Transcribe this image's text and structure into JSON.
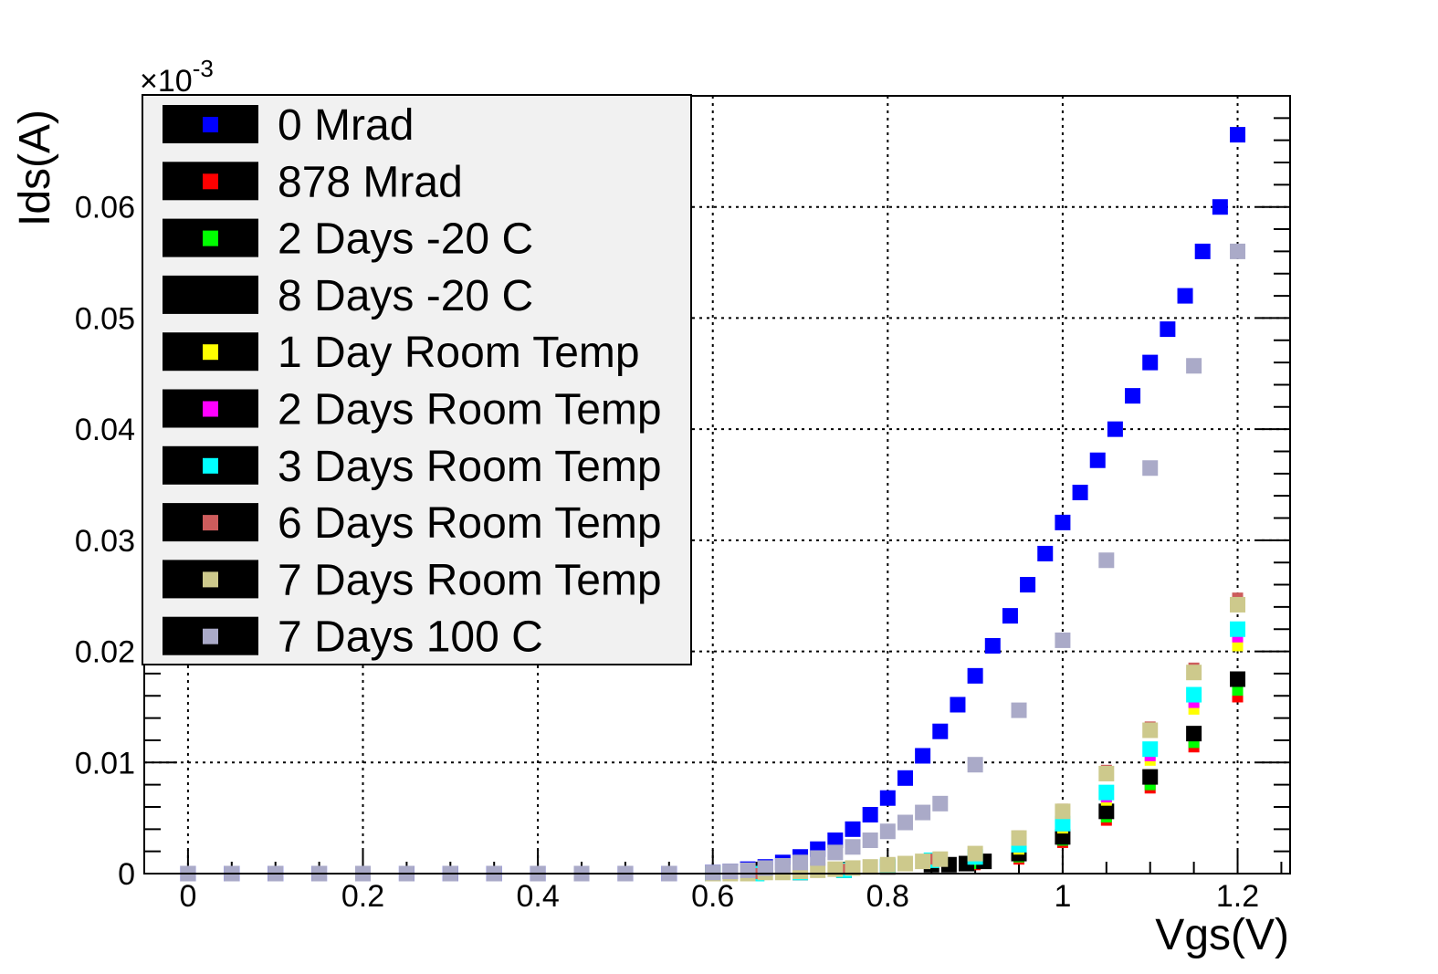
{
  "chart_data": {
    "type": "scatter",
    "xlabel": "Vgs(V)",
    "ylabel": "Ids(A)",
    "y_multiplier_label": "×10",
    "y_multiplier_exponent": "-3",
    "xlim": [
      -0.05,
      1.26
    ],
    "ylim": [
      0,
      0.07
    ],
    "x_ticks": [
      {
        "v": 0,
        "label": "0"
      },
      {
        "v": 0.2,
        "label": "0.2"
      },
      {
        "v": 0.4,
        "label": "0.4"
      },
      {
        "v": 0.6,
        "label": "0.6"
      },
      {
        "v": 0.8,
        "label": "0.8"
      },
      {
        "v": 1.0,
        "label": "1"
      },
      {
        "v": 1.2,
        "label": "1.2"
      }
    ],
    "y_ticks": [
      {
        "v": 0,
        "label": "0"
      },
      {
        "v": 0.01,
        "label": "0.01"
      },
      {
        "v": 0.02,
        "label": "0.02"
      },
      {
        "v": 0.03,
        "label": "0.03"
      },
      {
        "v": 0.04,
        "label": "0.04"
      },
      {
        "v": 0.05,
        "label": "0.05"
      },
      {
        "v": 0.06,
        "label": "0.06"
      }
    ],
    "grid": true,
    "legend_position": "top-left",
    "series": [
      {
        "name": "0 Mrad",
        "color": "#0000ff",
        "marker_size": 17,
        "x": [
          0,
          0.05,
          0.1,
          0.15,
          0.2,
          0.25,
          0.3,
          0.35,
          0.4,
          0.45,
          0.5,
          0.55,
          0.6,
          0.62,
          0.64,
          0.66,
          0.68,
          0.7,
          0.72,
          0.74,
          0.76,
          0.78,
          0.8,
          0.82,
          0.84,
          0.86,
          0.88,
          0.9,
          0.92,
          0.94,
          0.96,
          0.98,
          1.0,
          1.02,
          1.04,
          1.06,
          1.08,
          1.1,
          1.12,
          1.14,
          1.16,
          1.18,
          1.2
        ],
        "y": [
          0,
          0,
          0,
          0,
          0,
          0,
          0,
          0,
          0,
          0,
          0,
          0,
          0.0001,
          0.0002,
          0.0004,
          0.0006,
          0.001,
          0.0015,
          0.0022,
          0.003,
          0.004,
          0.0053,
          0.0068,
          0.0086,
          0.0106,
          0.0128,
          0.0152,
          0.0178,
          0.0205,
          0.0232,
          0.026,
          0.0288,
          0.0316,
          0.0343,
          0.0372,
          0.04,
          0.043,
          0.046,
          0.049,
          0.052,
          0.056,
          0.06,
          0.0665
        ]
      },
      {
        "name": "878 Mrad",
        "color": "#ff0000",
        "marker_size": 12,
        "x": [
          0.6,
          0.65,
          0.7,
          0.75,
          0.8,
          0.85,
          0.9,
          0.95,
          1.0,
          1.05,
          1.1,
          1.15,
          1.2
        ],
        "y": [
          0,
          0,
          0.0001,
          0.0003,
          0.0006,
          0.0009,
          0.0008,
          0.0013,
          0.0028,
          0.0048,
          0.0077,
          0.0114,
          0.0159
        ]
      },
      {
        "name": "2 Days -20 C",
        "color": "#00ff00",
        "marker_size": 12,
        "x": [
          0.6,
          0.65,
          0.7,
          0.75,
          0.8,
          0.85,
          0.9,
          0.95,
          1.0,
          1.05,
          1.1,
          1.15,
          1.2
        ],
        "y": [
          0,
          0,
          0.0001,
          0.0003,
          0.0006,
          0.001,
          0.0009,
          0.0015,
          0.003,
          0.0051,
          0.008,
          0.0118,
          0.0165
        ]
      },
      {
        "name": "8 Days -20 C",
        "color": "#000000",
        "marker_size": 17,
        "x": [
          0.6,
          0.65,
          0.7,
          0.75,
          0.8,
          0.85,
          0.87,
          0.89,
          0.91,
          0.95,
          1.0,
          1.05,
          1.1,
          1.15,
          1.2
        ],
        "y": [
          0,
          0,
          0.0001,
          0.0003,
          0.0006,
          0.0008,
          0.0008,
          0.0009,
          0.0011,
          0.0018,
          0.0033,
          0.0056,
          0.0087,
          0.0126,
          0.0175
        ]
      },
      {
        "name": "1 Day Room Temp",
        "color": "#ffff00",
        "marker_size": 12,
        "x": [
          0.6,
          0.65,
          0.7,
          0.75,
          0.8,
          0.85,
          0.9,
          0.95,
          1.0,
          1.05,
          1.1,
          1.15,
          1.2
        ],
        "y": [
          0,
          0,
          0.0001,
          0.0003,
          0.0007,
          0.0011,
          0.0013,
          0.0022,
          0.0041,
          0.0066,
          0.0102,
          0.0148,
          0.0205
        ]
      },
      {
        "name": "2 Days Room Temp",
        "color": "#ff00ff",
        "marker_size": 12,
        "x": [
          0.6,
          0.65,
          0.7,
          0.75,
          0.8,
          0.85,
          0.9,
          0.95,
          1.0,
          1.05,
          1.1,
          1.15,
          1.2
        ],
        "y": [
          0,
          0,
          0.0001,
          0.0003,
          0.0007,
          0.0011,
          0.0014,
          0.0024,
          0.0043,
          0.0069,
          0.0106,
          0.0154,
          0.0213
        ]
      },
      {
        "name": "3 Days Room Temp",
        "color": "#00ffff",
        "marker_size": 17,
        "x": [
          0.6,
          0.65,
          0.7,
          0.75,
          0.8,
          0.85,
          0.9,
          0.95,
          1.0,
          1.05,
          1.1,
          1.15,
          1.2
        ],
        "y": [
          0,
          0,
          0.0001,
          0.0003,
          0.0007,
          0.0012,
          0.0015,
          0.0026,
          0.0045,
          0.0073,
          0.0112,
          0.0161,
          0.022
        ]
      },
      {
        "name": "6 Days Room Temp",
        "color": "#cd5c5c",
        "marker_size": 12,
        "x": [
          0.6,
          0.65,
          0.7,
          0.75,
          0.8,
          0.85,
          0.9,
          0.95,
          1.0,
          1.05,
          1.1,
          1.15,
          1.2
        ],
        "y": [
          0,
          0,
          0.0001,
          0.0004,
          0.0008,
          0.0013,
          0.0019,
          0.0034,
          0.0058,
          0.0093,
          0.0132,
          0.0185,
          0.0248
        ]
      },
      {
        "name": "7 Days Room Temp",
        "color": "#cdc98c",
        "marker_size": 17,
        "x": [
          0.6,
          0.62,
          0.64,
          0.66,
          0.68,
          0.7,
          0.72,
          0.74,
          0.76,
          0.78,
          0.8,
          0.82,
          0.84,
          0.86,
          0.9,
          0.95,
          1.0,
          1.05,
          1.1,
          1.15,
          1.2
        ],
        "y": [
          0,
          0,
          0,
          0.0001,
          0.0001,
          0.0002,
          0.0003,
          0.0004,
          0.0005,
          0.0006,
          0.0008,
          0.0009,
          0.0011,
          0.0013,
          0.0018,
          0.0032,
          0.0056,
          0.009,
          0.0129,
          0.0181,
          0.0242
        ]
      },
      {
        "name": "7 Days 100 C",
        "color": "#aaaac8",
        "marker_size": 17,
        "x": [
          0,
          0.05,
          0.1,
          0.15,
          0.2,
          0.25,
          0.3,
          0.35,
          0.4,
          0.45,
          0.5,
          0.55,
          0.6,
          0.62,
          0.64,
          0.66,
          0.68,
          0.7,
          0.72,
          0.74,
          0.76,
          0.78,
          0.8,
          0.82,
          0.84,
          0.86,
          0.9,
          0.95,
          1.0,
          1.05,
          1.1,
          1.15,
          1.2
        ],
        "y": [
          0,
          0,
          0,
          0,
          0,
          0,
          0,
          0,
          0,
          0,
          0,
          0,
          0.0001,
          0.0002,
          0.0003,
          0.0005,
          0.0007,
          0.001,
          0.0014,
          0.0019,
          0.0024,
          0.003,
          0.0038,
          0.0046,
          0.0055,
          0.0063,
          0.0098,
          0.0147,
          0.021,
          0.0282,
          0.0365,
          0.0457,
          0.056
        ]
      }
    ]
  }
}
